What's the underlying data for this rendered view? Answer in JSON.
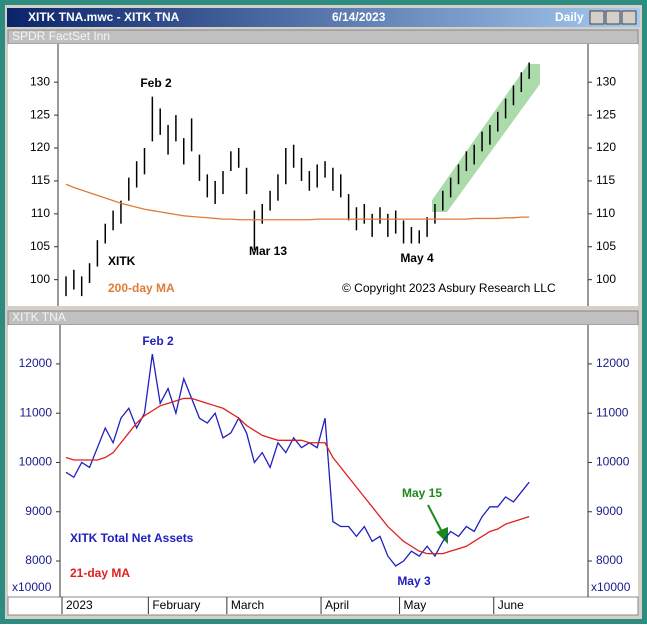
{
  "window": {
    "title": "XITK TNA.mwc - XITK TNA",
    "date": "6/14/2023",
    "period": "Daily"
  },
  "chart_data": [
    {
      "type": "bar-range",
      "panel_title": "SPDR FactSet Inn",
      "ylim": [
        96,
        135.8
      ],
      "yticks": [
        100,
        105,
        110,
        115,
        120,
        125,
        130
      ],
      "series": [
        {
          "name": "XITK",
          "color": "#000000",
          "high": [
            100.5,
            101.5,
            100.5,
            102.5,
            106,
            108.5,
            110.5,
            112,
            115.5,
            118,
            120,
            127.8,
            126,
            123.5,
            125,
            121.5,
            124.5,
            119,
            116,
            115,
            116.5,
            119.5,
            120,
            117,
            110.5,
            111.5,
            113.5,
            116,
            120,
            120.5,
            118.5,
            116.5,
            117.5,
            118,
            117,
            116,
            113,
            111,
            111.5,
            110,
            111,
            110,
            110.5,
            109,
            108,
            107.5,
            109.5,
            111.5,
            113.5,
            115.5,
            117.5,
            119.5,
            120.5,
            122.5,
            123.5,
            125.5,
            127.5,
            129.5,
            131.5,
            133
          ],
          "low": [
            97.5,
            98.5,
            97.5,
            99.5,
            102,
            105.5,
            107.5,
            108.5,
            112,
            114,
            116,
            121,
            122,
            119,
            121,
            117.5,
            119.5,
            115,
            112.5,
            111.5,
            113,
            116.5,
            117,
            113,
            104.5,
            108.5,
            110.5,
            112,
            114.5,
            117,
            115,
            113.5,
            114,
            115.5,
            113.5,
            112.5,
            109,
            107.5,
            108.5,
            106.5,
            108.5,
            106.5,
            107,
            105.5,
            105.5,
            105.5,
            106.5,
            108.5,
            110.5,
            112.5,
            114.5,
            116.5,
            117.5,
            119.5,
            120.5,
            122.5,
            124.5,
            126.5,
            128.5,
            130.5
          ]
        },
        {
          "name": "200-day MA",
          "color": "#e07b39",
          "values": [
            114.5,
            114,
            113.6,
            113.2,
            112.8,
            112.4,
            112,
            111.6,
            111.3,
            111,
            110.7,
            110.5,
            110.3,
            110.1,
            109.9,
            109.7,
            109.6,
            109.5,
            109.4,
            109.3,
            109.2,
            109.2,
            109.1,
            109.1,
            109.1,
            109.1,
            109.1,
            109.1,
            109.1,
            109.1,
            109.1,
            109.1,
            109.2,
            109.2,
            109.2,
            109.2,
            109.2,
            109.2,
            109.2,
            109.2,
            109.2,
            109.2,
            109.2,
            109.2,
            109.2,
            109.2,
            109.2,
            109.2,
            109.2,
            109.2,
            109.2,
            109.2,
            109.3,
            109.3,
            109.3,
            109.3,
            109.4,
            109.4,
            109.5,
            109.5
          ]
        }
      ],
      "annotations": [
        "Feb 2",
        "Mar 13",
        "May 4",
        "© Copyright 2023 Asbury Research LLC"
      ]
    },
    {
      "type": "line",
      "panel_title": "XITK TNA",
      "scale_label": "x10000",
      "categories": [
        "2023",
        null,
        null,
        null,
        null,
        null,
        null,
        null,
        null,
        null,
        null,
        "February",
        null,
        null,
        null,
        null,
        null,
        null,
        null,
        null,
        null,
        "March",
        null,
        null,
        null,
        null,
        null,
        null,
        null,
        null,
        null,
        null,
        null,
        "April",
        null,
        null,
        null,
        null,
        null,
        null,
        null,
        null,
        null,
        "May",
        null,
        null,
        null,
        null,
        null,
        null,
        null,
        null,
        null,
        null,
        null,
        "June",
        null,
        null,
        null,
        null
      ],
      "ylim": [
        7270,
        12790
      ],
      "yticks": [
        8000,
        9000,
        10000,
        11000,
        12000
      ],
      "series": [
        {
          "name": "XITK Total Net Assets",
          "color": "#2020c0",
          "values": [
            9800,
            9700,
            10000,
            9900,
            10300,
            10700,
            10400,
            10900,
            11100,
            10700,
            11000,
            12200,
            11200,
            11500,
            11000,
            11700,
            11300,
            10900,
            10800,
            11000,
            10500,
            10600,
            10900,
            10600,
            10000,
            10200,
            9900,
            10400,
            10200,
            10500,
            10300,
            10400,
            10300,
            10900,
            8800,
            8700,
            8700,
            8500,
            8700,
            8400,
            8500,
            8100,
            7900,
            8000,
            8200,
            8100,
            8300,
            8100,
            8400,
            8600,
            8500,
            8700,
            8600,
            8900,
            9100,
            9100,
            9300,
            9200,
            9400,
            9600
          ]
        },
        {
          "name": "21-day MA",
          "color": "#e02020",
          "values": [
            10100,
            10050,
            10050,
            10050,
            10050,
            10100,
            10200,
            10400,
            10600,
            10800,
            10950,
            11050,
            11150,
            11200,
            11250,
            11300,
            11300,
            11250,
            11200,
            11150,
            11100,
            11000,
            10900,
            10750,
            10650,
            10550,
            10500,
            10450,
            10450,
            10450,
            10450,
            10400,
            10400,
            10400,
            10100,
            9900,
            9700,
            9500,
            9300,
            9100,
            8900,
            8700,
            8550,
            8400,
            8300,
            8200,
            8150,
            8150,
            8150,
            8200,
            8250,
            8300,
            8400,
            8500,
            8600,
            8650,
            8750,
            8800,
            8850,
            8900
          ]
        }
      ],
      "annotations": [
        "Feb 2",
        "May 15",
        "May 3"
      ]
    }
  ]
}
